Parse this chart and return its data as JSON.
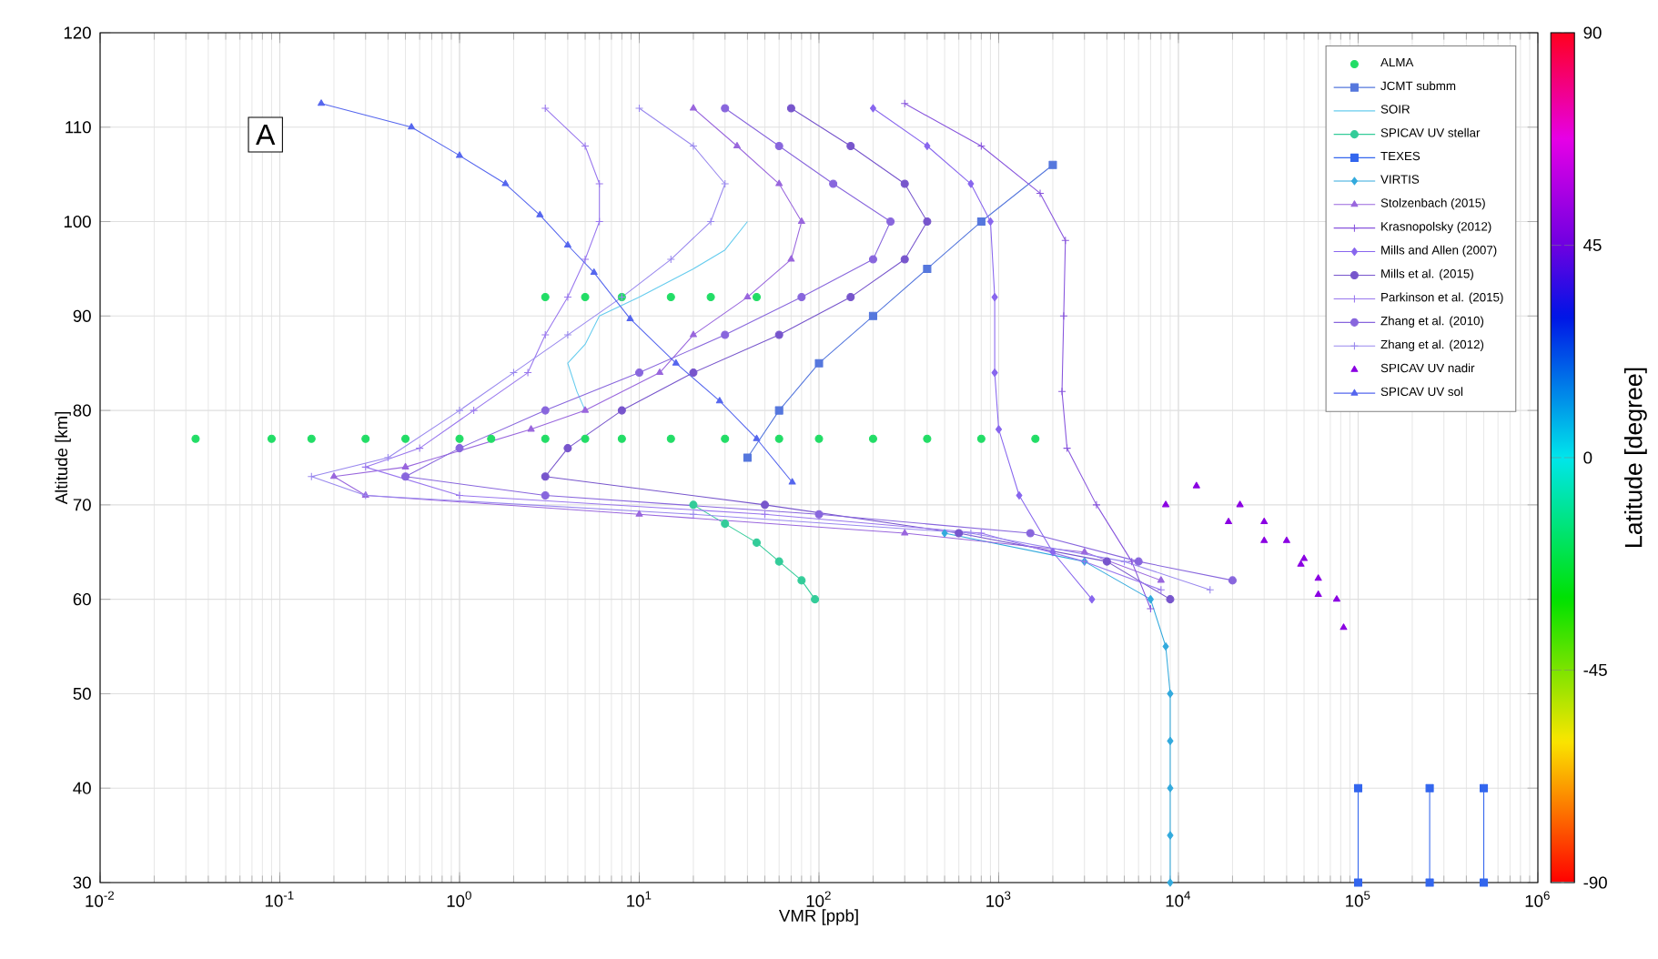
{
  "chart_data": {
    "type": "line",
    "xlabel": "VMR [ppb]",
    "ylabel": "Altitude [km]",
    "clabel": "Latitude [degree]",
    "clim": [
      -90,
      90
    ],
    "cticks": [
      -90,
      -45,
      0,
      45,
      90
    ],
    "log": "x",
    "grid": true,
    "legend": "top right",
    "annotations": [
      "A"
    ],
    "xlim": [
      0.01,
      1000000
    ],
    "ylim": [
      30,
      120
    ],
    "xticks": [
      {
        "value": 0.01,
        "label": "10$^{-2}$"
      },
      {
        "value": 0.1,
        "label": "10$^{-1}$"
      },
      {
        "value": 1,
        "label": "10$^{0}$"
      },
      {
        "value": 10,
        "label": "10$^{1}$"
      },
      {
        "value": 100,
        "label": "10$^{2}$"
      },
      {
        "value": 1000,
        "label": "10$^{3}$"
      },
      {
        "value": 10000,
        "label": "10$^{4}$"
      },
      {
        "value": 100000,
        "label": "10$^{5}$"
      },
      {
        "value": 1000000,
        "label": "10$^{6}$"
      }
    ],
    "yticks": [
      30,
      40,
      50,
      60,
      70,
      80,
      90,
      100,
      110,
      120
    ],
    "series": [
      {
        "name": "ALMA",
        "type": "scatter",
        "marker": "circle",
        "color": "#22dd66",
        "x": [
          0.034,
          0.09,
          0.15,
          0.3,
          0.5,
          1,
          1.5,
          3,
          5,
          8,
          15,
          30,
          60,
          100,
          200,
          400,
          800,
          1600,
          3,
          5,
          8,
          15,
          25,
          45
        ],
        "values": [
          77,
          77,
          77,
          77,
          77,
          77,
          77,
          77,
          77,
          77,
          77,
          77,
          77,
          77,
          77,
          77,
          77,
          77,
          92,
          92,
          92,
          92,
          92,
          92
        ]
      },
      {
        "name": "JCMT submm",
        "marker": "square",
        "color": "#5577dd",
        "x": [
          2000,
          800,
          400,
          200,
          100,
          60,
          40
        ],
        "values": [
          106,
          100,
          95,
          90,
          85,
          80,
          75
        ]
      },
      {
        "name": "SOIR",
        "marker": "none",
        "color": "#66ccee",
        "x": [
          40,
          30,
          20,
          10,
          6,
          5,
          4,
          4.5,
          5
        ],
        "values": [
          100,
          97,
          95,
          92,
          90,
          87,
          85,
          82,
          80
        ]
      },
      {
        "name": "SPICAV UV stellar",
        "marker": "circle",
        "color": "#33cc99",
        "x": [
          20,
          30,
          45,
          60,
          80,
          95
        ],
        "values": [
          70,
          68,
          66,
          64,
          62,
          60
        ]
      },
      {
        "name": "TEXES",
        "marker": "square",
        "color": "#3366ee",
        "x": [
          100000,
          100000,
          null,
          250000,
          250000,
          null,
          500000,
          500000
        ],
        "values": [
          30,
          40,
          null,
          40,
          30,
          null,
          30,
          40
        ]
      },
      {
        "name": "VIRTIS",
        "marker": "diamond",
        "color": "#33aadd",
        "x": [
          9000,
          9000,
          9000,
          9000,
          9000,
          8500,
          7000,
          3000,
          500
        ],
        "values": [
          30,
          35,
          40,
          45,
          50,
          55,
          60,
          64,
          67
        ]
      },
      {
        "name": "Stolzenbach (2015)",
        "marker": "triangle",
        "color": "#9966dd",
        "x": [
          20,
          35,
          60,
          80,
          70,
          40,
          20,
          13,
          5,
          2.5,
          0.5,
          0.2,
          0.3,
          10,
          300,
          3000,
          8000
        ],
        "values": [
          112,
          108,
          104,
          100,
          96,
          92,
          88,
          84,
          80,
          78,
          74,
          73,
          71,
          69,
          67,
          65,
          62
        ]
      },
      {
        "name": "Krasnopolsky (2012)",
        "marker": "cross",
        "color": "#8855dd",
        "x": [
          300,
          800,
          1700,
          2350,
          2300,
          2250,
          2400,
          3500,
          5500,
          7000
        ],
        "values": [
          112.5,
          108,
          103,
          98,
          90,
          82,
          76,
          70,
          64,
          59
        ]
      },
      {
        "name": "Mills and Allen (2007)",
        "marker": "diamond",
        "color": "#8866ee",
        "x": [
          200,
          400,
          700,
          900,
          950,
          950,
          1000,
          1300,
          2000,
          3300
        ],
        "values": [
          112,
          108,
          104,
          100,
          92,
          84,
          78,
          71,
          65,
          60
        ]
      },
      {
        "name": "Mills et al. (2015)",
        "marker": "circle",
        "color": "#7755cc",
        "x": [
          70,
          150,
          300,
          400,
          300,
          150,
          60,
          20,
          8,
          4,
          3,
          50,
          600,
          4000,
          9000
        ],
        "values": [
          112,
          108,
          104,
          100,
          96,
          92,
          88,
          84,
          80,
          76,
          73,
          70,
          67,
          64,
          60
        ]
      },
      {
        "name": "Parkinson et al. (2015)",
        "marker": "cross",
        "color": "#9977ee",
        "x": [
          3,
          5,
          6,
          6,
          5,
          4,
          3,
          2.4,
          1.2,
          0.6,
          0.3,
          1,
          50,
          800,
          3000,
          8000
        ],
        "values": [
          112,
          108,
          104,
          100,
          96,
          92,
          88,
          84,
          80,
          76,
          74,
          71,
          69,
          67,
          64,
          61
        ]
      },
      {
        "name": "Zhang et al. (2010)",
        "marker": "circle",
        "color": "#8866dd",
        "x": [
          30,
          60,
          120,
          250,
          200,
          80,
          30,
          10,
          3,
          1,
          0.5,
          3,
          100,
          1500,
          6000,
          20000
        ],
        "values": [
          112,
          108,
          104,
          100,
          96,
          92,
          88,
          84,
          80,
          76,
          73,
          71,
          69,
          67,
          64,
          62
        ]
      },
      {
        "name": "Zhang et al. (2012)",
        "marker": "cross",
        "color": "#9988ee",
        "x": [
          10,
          20,
          30,
          25,
          15,
          8,
          4,
          2,
          1,
          0.4,
          0.15,
          0.3,
          20,
          700,
          5000,
          15000
        ],
        "values": [
          112,
          108,
          104,
          100,
          96,
          92,
          88,
          84,
          80,
          75,
          73,
          71,
          69,
          67,
          64,
          61
        ]
      },
      {
        "name": "SPICAV UV nadir",
        "type": "scatter",
        "marker": "triangle",
        "color": "#8a00e2",
        "x": [
          12600,
          22000,
          30000,
          40000,
          50000,
          60000,
          76000,
          83000,
          8500,
          19000,
          30000,
          48000,
          60000
        ],
        "values": [
          72,
          70,
          68.2,
          66.2,
          64.3,
          62.2,
          60,
          57,
          70,
          68.2,
          66.2,
          63.7,
          60.5
        ]
      },
      {
        "name": "SPICAV UV sol",
        "marker": "triangle",
        "color": "#5566ee",
        "x": [
          0.17,
          0.54,
          1,
          1.8,
          2.8,
          4,
          5.6,
          8.9,
          16,
          28,
          45,
          71
        ],
        "values": [
          112.5,
          110,
          107,
          104,
          100.7,
          97.5,
          94.6,
          89.7,
          85,
          81,
          77,
          72.4
        ]
      }
    ]
  }
}
